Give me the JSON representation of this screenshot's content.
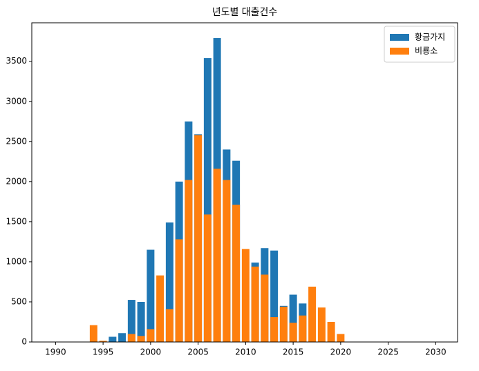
{
  "chart_data": {
    "type": "bar",
    "title": "년도별 대출건수",
    "x": [
      1994,
      1995,
      1996,
      1997,
      1998,
      1999,
      2000,
      2001,
      2002,
      2003,
      2004,
      2005,
      2006,
      2007,
      2008,
      2009,
      2010,
      2011,
      2012,
      2013,
      2014,
      2015,
      2016,
      2017,
      2018,
      2019,
      2020
    ],
    "series": [
      {
        "name": "황금가지",
        "color": "#1f77b4",
        "values": [
          0,
          0,
          65,
          110,
          525,
          500,
          1150,
          0,
          1490,
          2000,
          2750,
          2590,
          3540,
          3790,
          2400,
          2260,
          0,
          990,
          1170,
          1140,
          450,
          590,
          480,
          0,
          0,
          0,
          0
        ]
      },
      {
        "name": "비룡소",
        "color": "#ff7f0e",
        "values": [
          210,
          15,
          0,
          0,
          100,
          75,
          160,
          830,
          410,
          1280,
          2020,
          2580,
          1590,
          2160,
          2020,
          1710,
          1160,
          940,
          840,
          310,
          440,
          240,
          330,
          690,
          430,
          250,
          100
        ]
      }
    ],
    "xlim": [
      1987.5,
      2032.3
    ],
    "xticks": [
      1990,
      1995,
      2000,
      2005,
      2010,
      2015,
      2020,
      2025,
      2030
    ],
    "ylim": [
      0,
      3980
    ],
    "yticks": [
      0,
      500,
      1000,
      1500,
      2000,
      2500,
      3000,
      3500
    ],
    "legend": "upper right"
  }
}
